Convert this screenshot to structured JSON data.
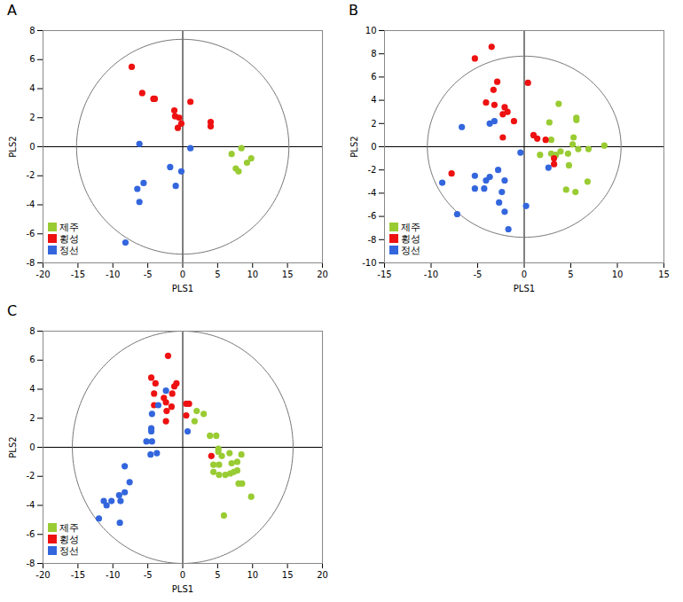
{
  "chart_data": [
    {
      "type": "scatter",
      "title": "A",
      "x_label": "PLS1",
      "y_label": "PLS2",
      "xlim": [
        -20,
        20
      ],
      "ylim": [
        -8,
        8
      ],
      "xticks": [
        -20,
        -15,
        -10,
        -5,
        0,
        5,
        10,
        15,
        20
      ],
      "yticks": [
        -8,
        -6,
        -4,
        -2,
        0,
        2,
        4,
        6,
        8
      ],
      "legend": "bottom-left",
      "ellipse": {
        "x_radius": 15.2,
        "y_radius": 7.4
      },
      "reference_lines": {
        "x": 0,
        "y": 0
      },
      "series": [
        {
          "name": "제주",
          "color": "#99cc33",
          "x": [
            7.0,
            8.4,
            7.6,
            8.0,
            9.2,
            9.8
          ],
          "y": [
            -0.5,
            -0.1,
            -1.5,
            -1.7,
            -1.1,
            -0.8
          ]
        },
        {
          "name": "횡성",
          "color": "#ee1111",
          "x": [
            -7.3,
            -5.8,
            -4.2,
            -4.0,
            -1.2,
            -1.1,
            -0.5,
            -0.2,
            -0.7,
            1.1,
            4.0,
            4.0
          ],
          "y": [
            5.5,
            3.7,
            3.3,
            3.3,
            2.5,
            2.1,
            2.0,
            1.6,
            1.3,
            3.1,
            1.7,
            1.4
          ]
        },
        {
          "name": "정선",
          "color": "#3366dd",
          "x": [
            -6.2,
            -6.5,
            -5.6,
            -6.2,
            -8.2,
            -1.8,
            -1.0,
            -0.2,
            1.1
          ],
          "y": [
            0.2,
            -2.9,
            -2.5,
            -3.8,
            -6.6,
            -1.4,
            -2.7,
            -1.7,
            -0.1
          ]
        }
      ]
    },
    {
      "type": "scatter",
      "title": "B",
      "x_label": "PLS1",
      "y_label": "PLS2",
      "xlim": [
        -15,
        15
      ],
      "ylim": [
        -10,
        10
      ],
      "xticks": [
        -15,
        -10,
        -5,
        0,
        5,
        10,
        15
      ],
      "yticks": [
        -10,
        -8,
        -6,
        -4,
        -2,
        0,
        2,
        4,
        6,
        8,
        10
      ],
      "legend": "bottom-left",
      "ellipse": {
        "x_radius": 10.4,
        "y_radius": 7.8
      },
      "reference_lines": {
        "x": 0,
        "y": 0
      },
      "series": [
        {
          "name": "제주",
          "color": "#99cc33",
          "x": [
            3.7,
            2.7,
            2.9,
            1.7,
            2.9,
            3.4,
            4.7,
            4.8,
            4.5,
            5.5,
            5.6,
            5.6,
            5.3,
            5.2,
            5.8,
            6.9,
            6.8,
            8.6,
            3.9
          ],
          "y": [
            3.7,
            2.1,
            0.6,
            -0.7,
            -0.6,
            -0.7,
            -0.6,
            -1.6,
            -3.7,
            -3.9,
            2.5,
            2.3,
            0.8,
            0.2,
            -0.2,
            -0.2,
            -3.0,
            0.1,
            -0.4
          ]
        },
        {
          "name": "횡성",
          "color": "#ee1111",
          "x": [
            -5.3,
            -3.5,
            -2.9,
            -3.3,
            -4.1,
            -3.2,
            -2.1,
            -1.8,
            -2.3,
            -1.1,
            -2.3,
            0.4,
            1.0,
            1.4,
            2.3,
            3.2,
            3.2,
            -7.8
          ],
          "y": [
            7.6,
            8.6,
            5.6,
            4.9,
            3.8,
            3.6,
            3.4,
            3.0,
            2.8,
            2.2,
            0.8,
            5.5,
            1.0,
            0.7,
            0.6,
            -1.0,
            -1.5,
            -2.3
          ]
        },
        {
          "name": "정선",
          "color": "#3366dd",
          "x": [
            -6.7,
            -3.7,
            -3.2,
            -8.8,
            -7.2,
            -5.3,
            -5.3,
            -4.3,
            -4.1,
            -3.7,
            -2.8,
            -2.1,
            -2.4,
            -2.7,
            -2.1,
            -1.7,
            -0.4,
            0.2,
            2.6
          ],
          "y": [
            1.7,
            2.0,
            2.2,
            -3.1,
            -5.8,
            -2.5,
            -3.6,
            -3.6,
            -2.9,
            -2.6,
            -2.0,
            -2.9,
            -3.9,
            -4.8,
            -5.6,
            -7.1,
            -0.5,
            -5.1,
            -1.8
          ]
        }
      ]
    },
    {
      "type": "scatter",
      "title": "C",
      "x_label": "PLS1",
      "y_label": "PLS2",
      "xlim": [
        -20,
        20
      ],
      "ylim": [
        -8,
        8
      ],
      "xticks": [
        -20,
        -15,
        -10,
        -5,
        0,
        5,
        10,
        15,
        20
      ],
      "yticks": [
        -8,
        -6,
        -4,
        -2,
        0,
        2,
        4,
        6,
        8
      ],
      "legend": "bottom-left",
      "ellipse": {
        "x_radius": 15.8,
        "y_radius": 8
      },
      "reference_lines": {
        "x": 0,
        "y": 0
      },
      "series": [
        {
          "name": "제주",
          "color": "#99cc33",
          "x": [
            2.0,
            3.0,
            1.7,
            3.9,
            4.8,
            5.1,
            5.1,
            5.6,
            6.7,
            7.8,
            7.0,
            4.4,
            5.2,
            4.4,
            5.2,
            6.1,
            6.8,
            7.3,
            8.0,
            8.5,
            9.8,
            5.9,
            8.4,
            7.8
          ],
          "y": [
            2.5,
            2.3,
            1.8,
            0.8,
            0.8,
            -0.1,
            -0.3,
            -0.6,
            -0.4,
            -1.0,
            -1.1,
            -1.2,
            -1.2,
            -1.7,
            -1.9,
            -1.9,
            -1.8,
            -1.7,
            -2.5,
            -2.5,
            -3.4,
            -4.7,
            -0.5,
            -1.6
          ]
        },
        {
          "name": "횡성",
          "color": "#ee1111",
          "x": [
            -2.1,
            -4.5,
            -3.9,
            -4.1,
            -4.1,
            -1.2,
            -0.9,
            -1.5,
            -2.7,
            -2.4,
            -2.3,
            -1.6,
            -2.4,
            0.5,
            0.9,
            0.5,
            4.1
          ],
          "y": [
            6.3,
            4.8,
            4.4,
            3.7,
            2.9,
            4.2,
            4.4,
            3.7,
            3.4,
            3.1,
            2.5,
            2.8,
            1.8,
            3.0,
            3.0,
            2.2,
            -0.6
          ]
        },
        {
          "name": "정선",
          "color": "#3366dd",
          "x": [
            -2.4,
            -3.5,
            -4.4,
            -4.5,
            -4.5,
            -5.2,
            -4.4,
            -3.7,
            0.7,
            -4.6,
            -8.3,
            -7.6,
            -8.3,
            -9.1,
            -8.9,
            -10.2,
            -11.3,
            -10.9,
            -12.0,
            -9.0
          ],
          "y": [
            3.9,
            2.9,
            2.3,
            1.3,
            1.1,
            0.4,
            0.4,
            -0.4,
            1.1,
            -0.5,
            -1.3,
            -2.4,
            -3.1,
            -3.3,
            -3.7,
            -3.7,
            -3.7,
            -4.0,
            -4.9,
            -5.2
          ]
        }
      ]
    }
  ]
}
